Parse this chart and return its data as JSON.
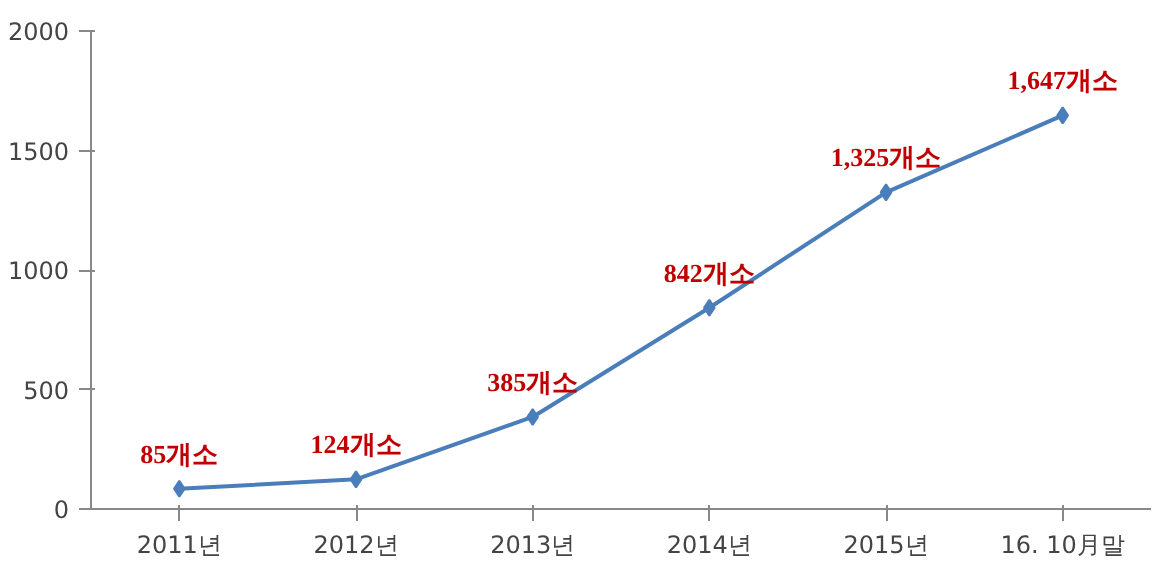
{
  "chart_data": {
    "type": "line",
    "categories": [
      "2011년",
      "2012년",
      "2013년",
      "2014년",
      "2015년",
      "16. 10月말"
    ],
    "series": [
      {
        "color": "#4a7ebb",
        "values": [
          85,
          124,
          385,
          842,
          1325,
          1647
        ],
        "value_labels": [
          "85개소",
          "124개소",
          "385개소",
          "842개소",
          "1,325개소",
          "1,647개소"
        ]
      }
    ],
    "ylim": [
      0,
      2000
    ],
    "yticks": [
      0,
      500,
      1000,
      1500,
      2000
    ],
    "grid": false,
    "marker": "diamond",
    "line_style": "solid"
  }
}
